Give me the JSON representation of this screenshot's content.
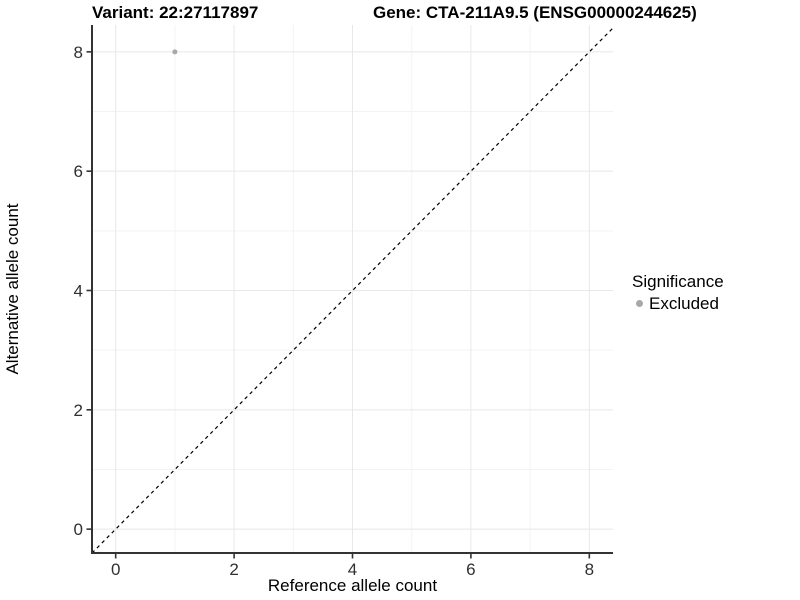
{
  "header": {
    "variant_title": "Variant: 22:27117897",
    "gene_title": "Gene: CTA-211A9.5 (ENSG00000244625)"
  },
  "chart_data": {
    "type": "scatter",
    "xlabel": "Reference allele count",
    "ylabel": "Alternative allele count",
    "xlim": [
      -0.4,
      8.4
    ],
    "ylim": [
      -0.4,
      8.45
    ],
    "x_ticks": [
      0,
      2,
      4,
      6,
      8
    ],
    "y_ticks": [
      0,
      2,
      4,
      6,
      8
    ],
    "x_minor_ticks": [
      1,
      3,
      5,
      7
    ],
    "y_minor_ticks": [
      1,
      3,
      5,
      7
    ],
    "grid": {
      "on": true,
      "major_color": "#e8e8e8",
      "minor_color": "#f3f3f3"
    },
    "reference_line": {
      "type": "identity",
      "equation": "y = x",
      "style": "dashed",
      "color": "#000000"
    },
    "series": [
      {
        "name": "Excluded",
        "color": "#a8a8a8",
        "points": [
          {
            "x": 1,
            "y": 8
          }
        ]
      }
    ],
    "legend": {
      "title": "Significance",
      "position": "right",
      "items": [
        {
          "label": "Excluded",
          "color": "#a8a8a8"
        }
      ]
    },
    "axis": {
      "line_color": "#333333",
      "tick_color": "#333333",
      "tick_label_color": "#303030"
    }
  }
}
